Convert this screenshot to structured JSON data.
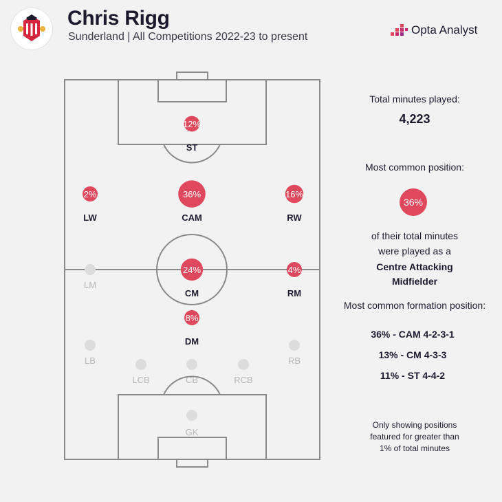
{
  "header": {
    "player_name": "Chris Rigg",
    "subtitle": "Sunderland | All Competitions 2022-23 to present",
    "brand": "Opta Analyst"
  },
  "colors": {
    "accent": "#e0485d",
    "inactive": "#dcdcdc",
    "pitch_line": "#8a8a8a",
    "text": "#1d1a2f",
    "inactive_text": "#b8b8b8"
  },
  "chart_data": {
    "type": "scatter",
    "description_free": true,
    "positions": [
      {
        "label": "ST",
        "value": 12,
        "display": "12%"
      },
      {
        "label": "LW",
        "value": 2,
        "display": "2%"
      },
      {
        "label": "CAM",
        "value": 36,
        "display": "36%"
      },
      {
        "label": "RW",
        "value": 16,
        "display": "16%"
      },
      {
        "label": "LM",
        "value": 0,
        "display": ""
      },
      {
        "label": "CM",
        "value": 24,
        "display": "24%"
      },
      {
        "label": "RM",
        "value": 4,
        "display": "4%"
      },
      {
        "label": "DM",
        "value": 8,
        "display": "8%"
      },
      {
        "label": "LB",
        "value": 0,
        "display": ""
      },
      {
        "label": "RB",
        "value": 0,
        "display": ""
      },
      {
        "label": "LCB",
        "value": 0,
        "display": ""
      },
      {
        "label": "CB",
        "value": 0,
        "display": ""
      },
      {
        "label": "RCB",
        "value": 0,
        "display": ""
      },
      {
        "label": "GK",
        "value": 0,
        "display": ""
      }
    ]
  },
  "stats": {
    "total_minutes_label": "Total minutes played:",
    "total_minutes_value": "4,223",
    "common_position_label": "Most common position:",
    "common_position_pct": "36%",
    "of_minutes_line1": "of their total minutes",
    "of_minutes_line2": "were played as a",
    "position_name_line1": "Centre Attacking",
    "position_name_line2": "Midfielder",
    "formation_label": "Most common formation position:",
    "formations": [
      "36% - CAM 4-2-3-1",
      "13% - CM 4-3-3",
      "11% - ST 4-4-2"
    ],
    "note_line1": "Only showing positions",
    "note_line2": "featured for greater than",
    "note_line3": "1% of total minutes"
  }
}
